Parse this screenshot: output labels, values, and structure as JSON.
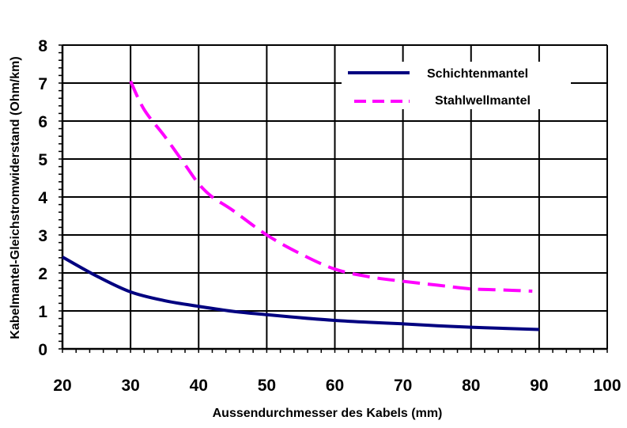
{
  "chart_data": {
    "type": "line",
    "title": "",
    "xlabel": "Aussendurchmesser des Kabels (mm)",
    "ylabel": "Kabelmantel-Gleichstromwiderstand (Ohm/km)",
    "xlim": [
      20,
      100
    ],
    "ylim": [
      0,
      8
    ],
    "xticks": [
      "20",
      "30",
      "40",
      "50",
      "60",
      "70",
      "80",
      "90",
      "100"
    ],
    "yticks": [
      "0",
      "1",
      "2",
      "3",
      "4",
      "5",
      "6",
      "7",
      "8"
    ],
    "grid": true,
    "legend_position": "top-right",
    "series": [
      {
        "name": "Schichtenmantel",
        "color": "#000080",
        "style": "solid",
        "x": [
          20,
          25,
          30,
          35,
          40,
          45,
          50,
          55,
          60,
          65,
          70,
          75,
          80,
          85,
          90
        ],
        "y": [
          2.42,
          1.92,
          1.5,
          1.27,
          1.12,
          0.99,
          0.9,
          0.82,
          0.75,
          0.7,
          0.66,
          0.61,
          0.57,
          0.54,
          0.51
        ]
      },
      {
        "name": "Stahlwellmantel",
        "color": "#ff00ff",
        "style": "dashed",
        "x": [
          30,
          32,
          35,
          38,
          40,
          42,
          45,
          50,
          55,
          60,
          65,
          70,
          75,
          80,
          85,
          89
        ],
        "y": [
          7.05,
          6.3,
          5.6,
          4.85,
          4.35,
          4.0,
          3.65,
          3.0,
          2.5,
          2.1,
          1.9,
          1.78,
          1.68,
          1.58,
          1.55,
          1.52
        ]
      }
    ]
  }
}
